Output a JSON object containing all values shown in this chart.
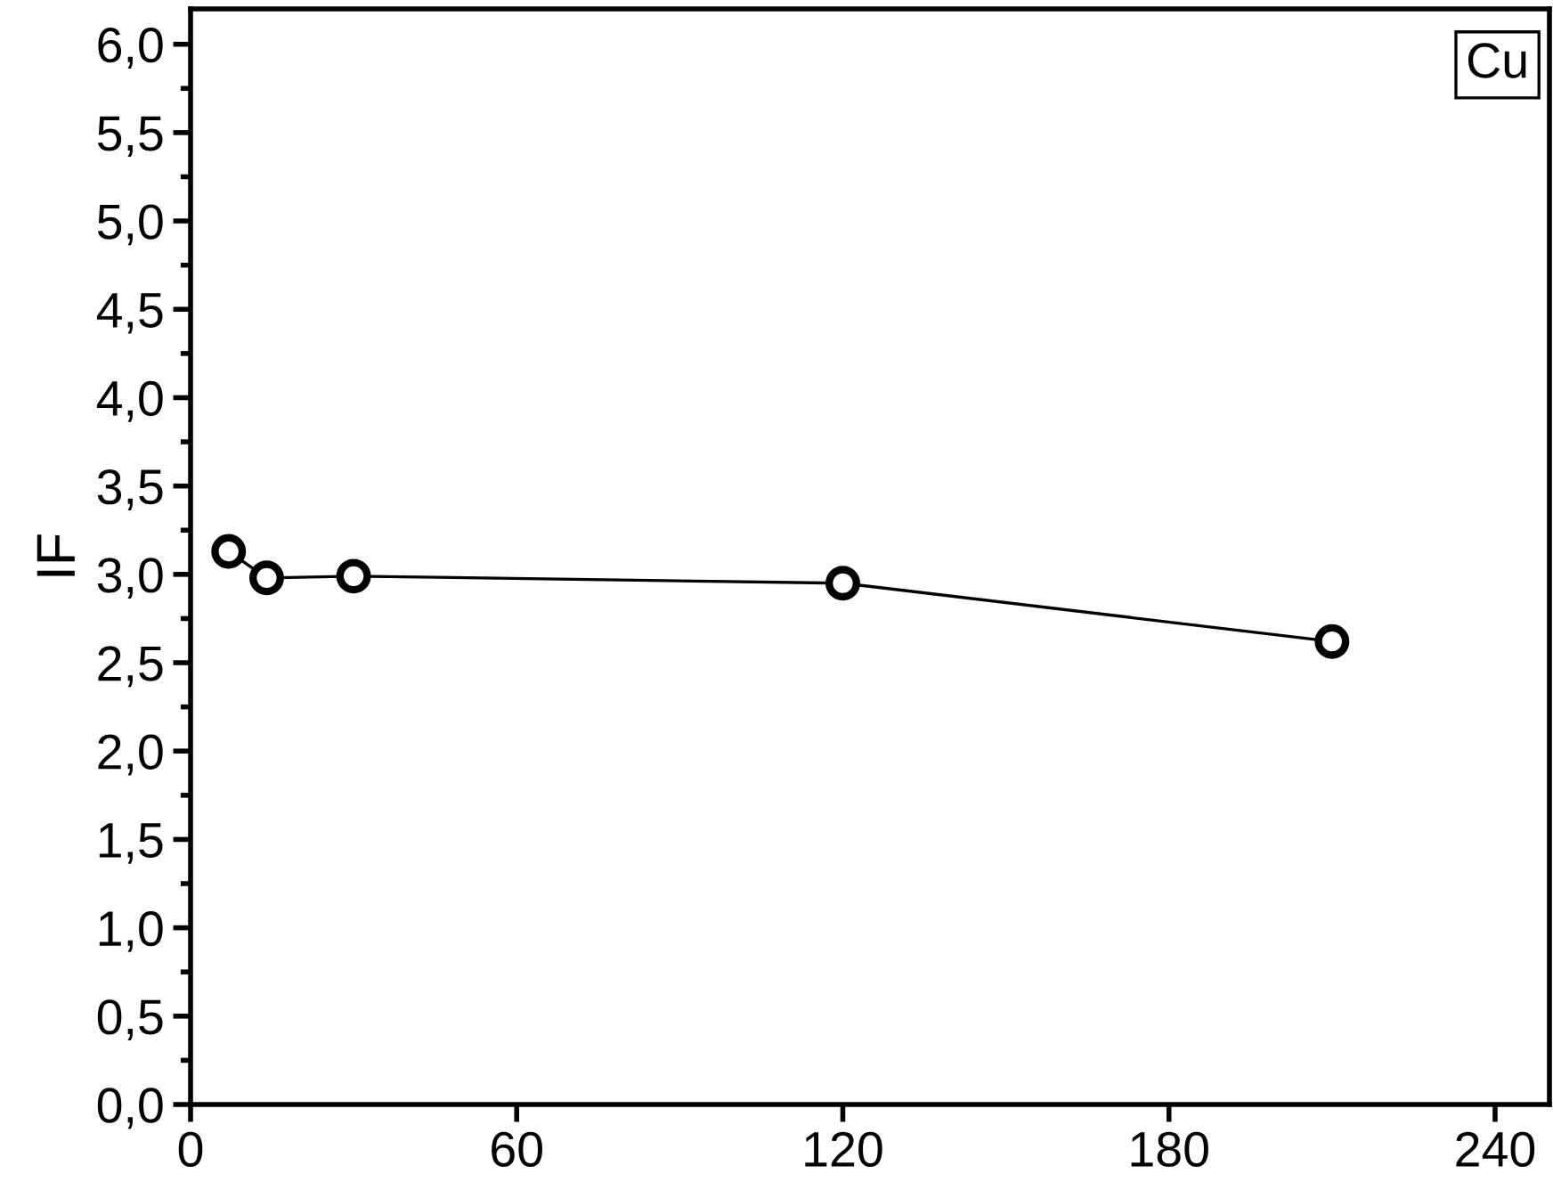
{
  "chart_data": {
    "type": "line",
    "ylabel": "IF",
    "annotations": [
      "Cu"
    ],
    "x": [
      7,
      14,
      30,
      120,
      210
    ],
    "values": [
      3.13,
      2.98,
      2.99,
      2.95,
      2.62
    ],
    "color": "#000000",
    "marker": "circle",
    "line_style": "solid",
    "xlim": [
      0,
      250
    ],
    "xticks": [
      0,
      60,
      120,
      180,
      240
    ],
    "ylim": [
      0,
      6.2
    ],
    "yticks": [
      {
        "value": 0,
        "label": "0,0"
      },
      {
        "value": 0.5,
        "label": "0,5"
      },
      {
        "value": 1,
        "label": "1,0"
      },
      {
        "value": 1.5,
        "label": "1,5"
      },
      {
        "value": 2,
        "label": "2,0"
      },
      {
        "value": 2.5,
        "label": "2,5"
      },
      {
        "value": 3,
        "label": "3,0"
      },
      {
        "value": 3.5,
        "label": "3,5"
      },
      {
        "value": 4,
        "label": "4,0"
      },
      {
        "value": 4.5,
        "label": "4,5"
      },
      {
        "value": 5,
        "label": "5,0"
      },
      {
        "value": 5.5,
        "label": "5,5"
      },
      {
        "value": 6,
        "label": "6,0"
      }
    ],
    "grid": false,
    "legend": false
  }
}
